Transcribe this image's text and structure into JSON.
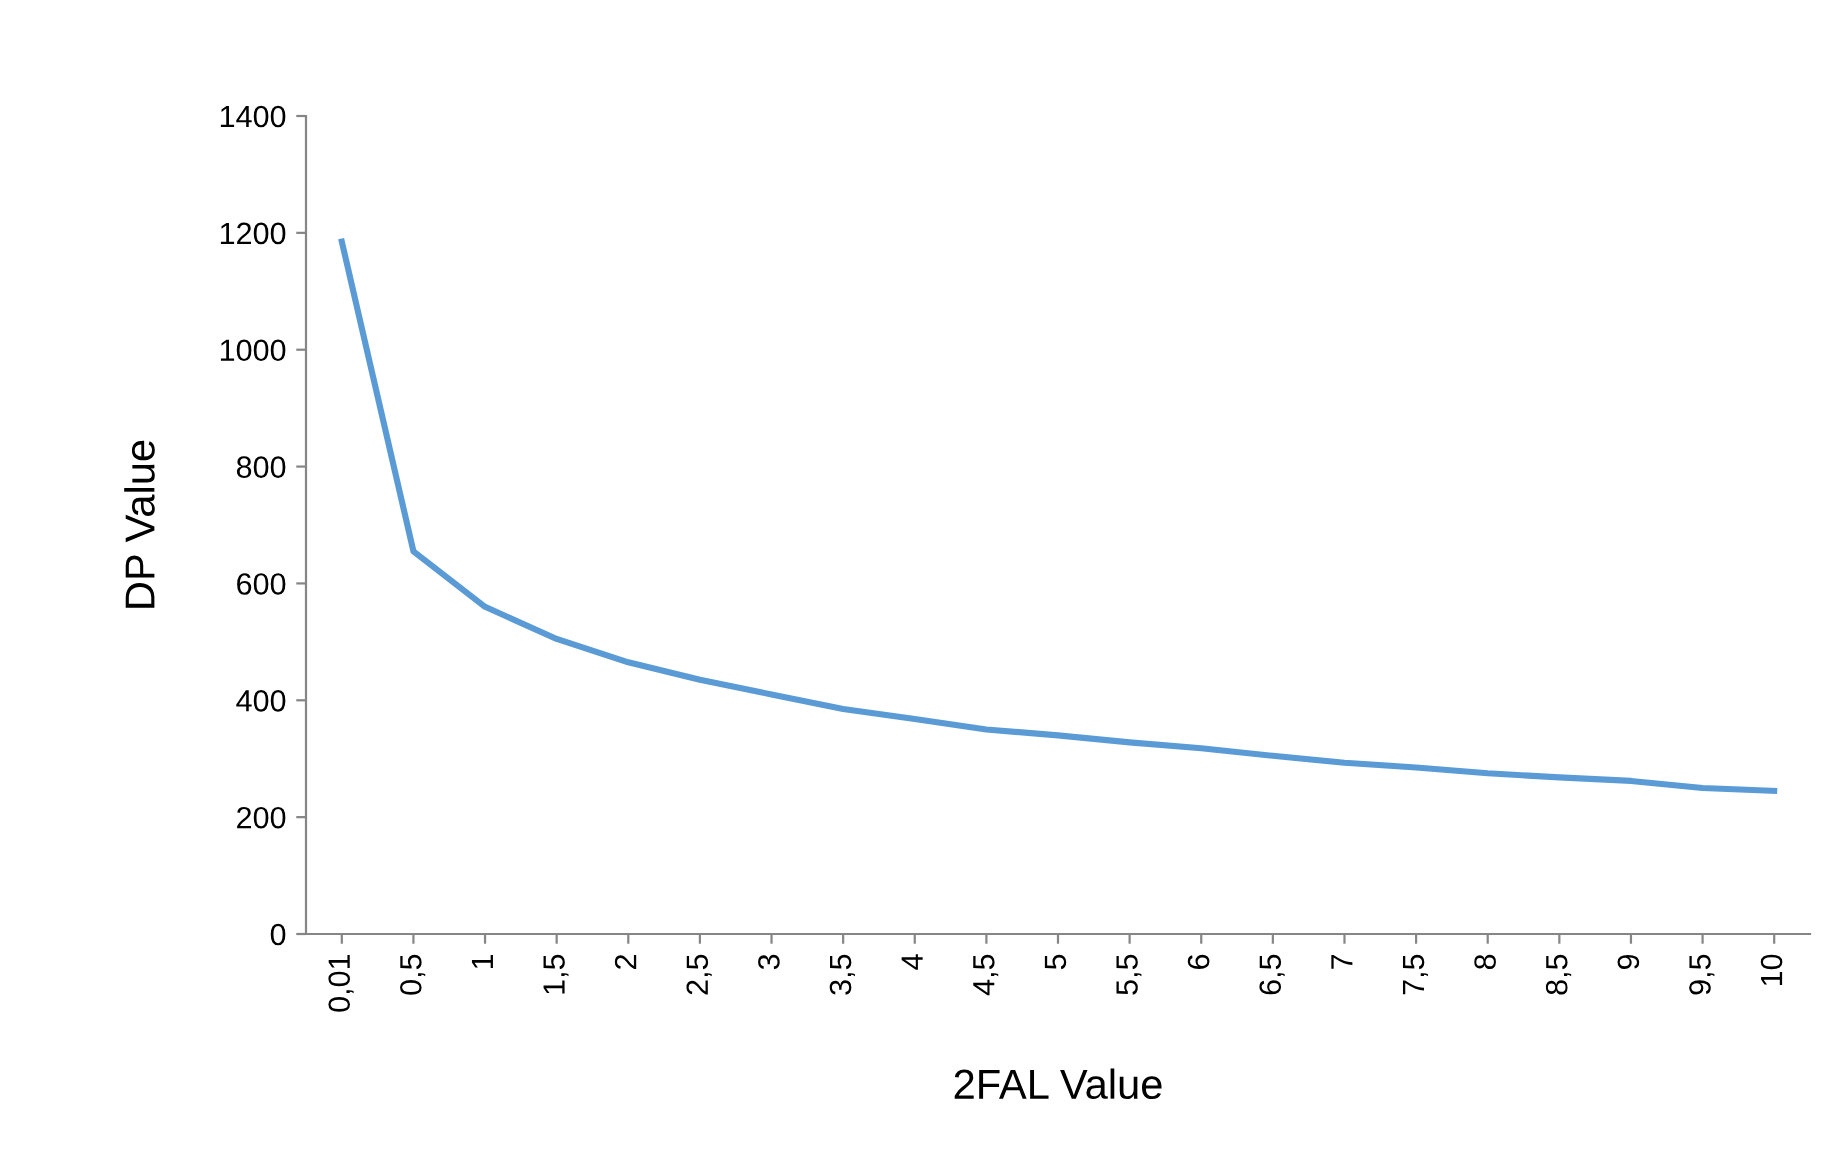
{
  "chart_data": {
    "type": "line",
    "xlabel": "2FAL Value",
    "ylabel": "DP Value",
    "categories": [
      "0,01",
      "0,5",
      "1",
      "1,5",
      "2",
      "2,5",
      "3",
      "3,5",
      "4",
      "4,5",
      "5",
      "5,5",
      "6",
      "6,5",
      "7",
      "7,5",
      "8",
      "8,5",
      "9",
      "9,5",
      "10"
    ],
    "series": [
      {
        "color": "#5b9bd5",
        "values": [
          1185,
          655,
          560,
          505,
          465,
          435,
          410,
          385,
          368,
          350,
          340,
          328,
          318,
          305,
          293,
          285,
          275,
          268,
          262,
          250,
          245
        ]
      }
    ],
    "ylim": [
      0,
      1400
    ],
    "yticks": [
      0,
      200,
      400,
      600,
      800,
      1000,
      1200,
      1400
    ],
    "grid": false,
    "legend": false,
    "marker": "none",
    "line_style": "solid"
  }
}
